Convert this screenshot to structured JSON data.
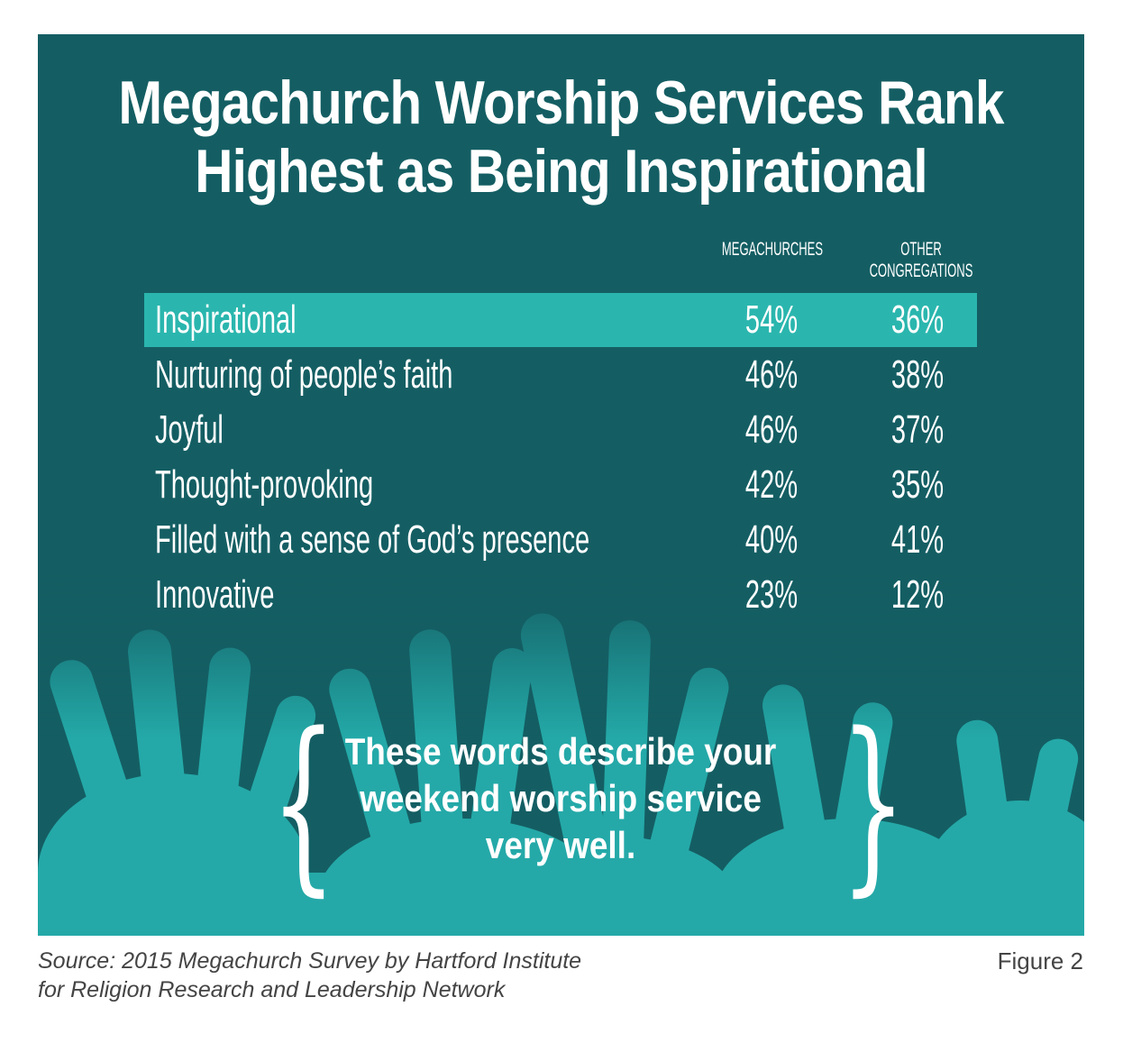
{
  "title_lines": [
    "Megachurch Worship Services Rank",
    "Highest as Being Inspirational"
  ],
  "chart_data": {
    "type": "table",
    "title": "Megachurch Worship Services Rank Highest as Being Inspirational",
    "columns": [
      "MEGACHURCHES",
      "OTHER CONGREGATIONS"
    ],
    "column_header_lines": {
      "megachurches": [
        "MEGACHURCHES"
      ],
      "other": [
        "OTHER",
        "CONGREGATIONS"
      ]
    },
    "rows": [
      {
        "label": "Inspirational",
        "megachurches": "54%",
        "other": "36%",
        "highlighted": true
      },
      {
        "label": "Nurturing of people’s faith",
        "megachurches": "46%",
        "other": "38%",
        "highlighted": false
      },
      {
        "label": "Joyful",
        "megachurches": "46%",
        "other": "37%",
        "highlighted": false
      },
      {
        "label": "Thought-provoking",
        "megachurches": "42%",
        "other": "35%",
        "highlighted": false
      },
      {
        "label": "Filled with a sense of God’s presence",
        "megachurches": "40%",
        "other": "41%",
        "highlighted": false
      },
      {
        "label": "Innovative",
        "megachurches": "23%",
        "other": "12%",
        "highlighted": false
      }
    ],
    "values_megachurches": [
      54,
      46,
      46,
      42,
      40,
      23
    ],
    "values_other": [
      36,
      38,
      37,
      35,
      41,
      12
    ]
  },
  "quote": {
    "lines": [
      "These words describe your",
      "weekend worship service",
      "very well."
    ],
    "open_brace": "{",
    "close_brace": "}"
  },
  "source_lines": [
    "Source: 2015 Megachurch Survey by Hartford Institute",
    "for Religion Research and Leadership Network"
  ],
  "figure_label": "Figure 2",
  "colors": {
    "panel": "#145e63",
    "highlight": "#2ab6ae",
    "hands": "#26b3b0",
    "text": "#ffffff",
    "caption": "#444444"
  }
}
